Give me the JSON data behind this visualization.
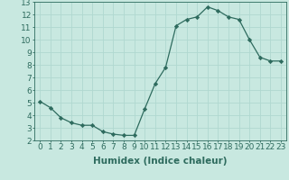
{
  "x": [
    0,
    1,
    2,
    3,
    4,
    5,
    6,
    7,
    8,
    9,
    10,
    11,
    12,
    13,
    14,
    15,
    16,
    17,
    18,
    19,
    20,
    21,
    22,
    23
  ],
  "y": [
    5.1,
    4.6,
    3.8,
    3.4,
    3.2,
    3.2,
    2.7,
    2.5,
    2.4,
    2.4,
    4.5,
    6.5,
    7.8,
    11.1,
    11.6,
    11.8,
    12.6,
    12.3,
    11.8,
    11.6,
    10.0,
    8.6,
    8.3,
    8.3
  ],
  "line_color": "#2e6b5e",
  "marker": "D",
  "marker_size": 2.2,
  "bg_color": "#c8e8e0",
  "grid_color": "#b0d8d0",
  "xlabel": "Humidex (Indice chaleur)",
  "xlim": [
    -0.5,
    23.5
  ],
  "ylim": [
    2,
    13
  ],
  "xticks": [
    0,
    1,
    2,
    3,
    4,
    5,
    6,
    7,
    8,
    9,
    10,
    11,
    12,
    13,
    14,
    15,
    16,
    17,
    18,
    19,
    20,
    21,
    22,
    23
  ],
  "yticks": [
    2,
    3,
    4,
    5,
    6,
    7,
    8,
    9,
    10,
    11,
    12,
    13
  ],
  "xlabel_fontsize": 7.5,
  "tick_fontsize": 6.5
}
